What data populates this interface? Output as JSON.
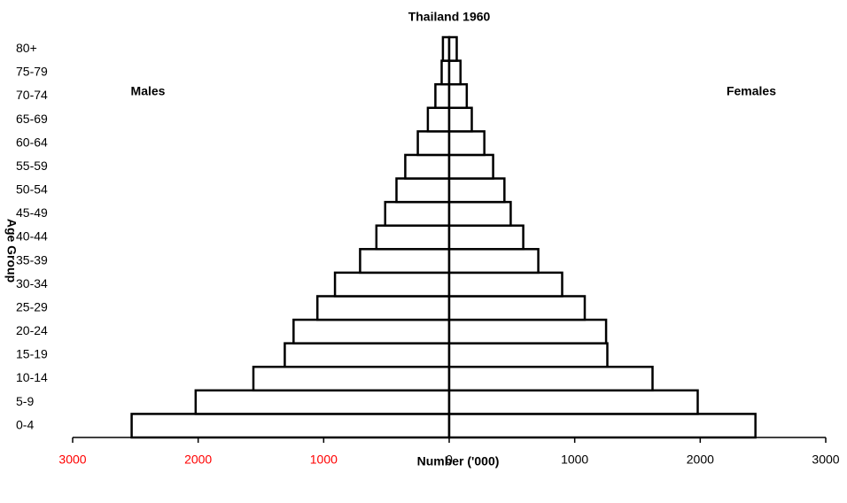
{
  "chart_data": {
    "type": "pyramid",
    "title": "Thailand 1960",
    "x_label": "Number ('000)",
    "y_label": "Age Group",
    "categories": [
      "0-4",
      "5-9",
      "10-14",
      "15-19",
      "20-24",
      "25-29",
      "30-34",
      "35-39",
      "40-44",
      "45-49",
      "50-54",
      "55-59",
      "60-64",
      "65-69",
      "70-74",
      "75-79",
      "80+"
    ],
    "series": [
      {
        "name": "Males",
        "color": "#ffffff",
        "side": "left",
        "values": [
          2530,
          2020,
          1560,
          1310,
          1240,
          1050,
          910,
          710,
          580,
          510,
          420,
          350,
          250,
          170,
          110,
          60,
          50
        ]
      },
      {
        "name": "Females",
        "color": "#ffffff",
        "side": "right",
        "values": [
          2440,
          1980,
          1620,
          1260,
          1250,
          1080,
          900,
          710,
          590,
          490,
          440,
          350,
          280,
          180,
          140,
          90,
          60
        ]
      }
    ],
    "xlim": [
      -3000,
      3000
    ],
    "xticks": [
      {
        "value": -3000,
        "label": "3000"
      },
      {
        "value": -2000,
        "label": "2000"
      },
      {
        "value": -1000,
        "label": "1000"
      },
      0,
      1000,
      2000,
      3000
    ],
    "left_tick_color": "#ff0000"
  }
}
